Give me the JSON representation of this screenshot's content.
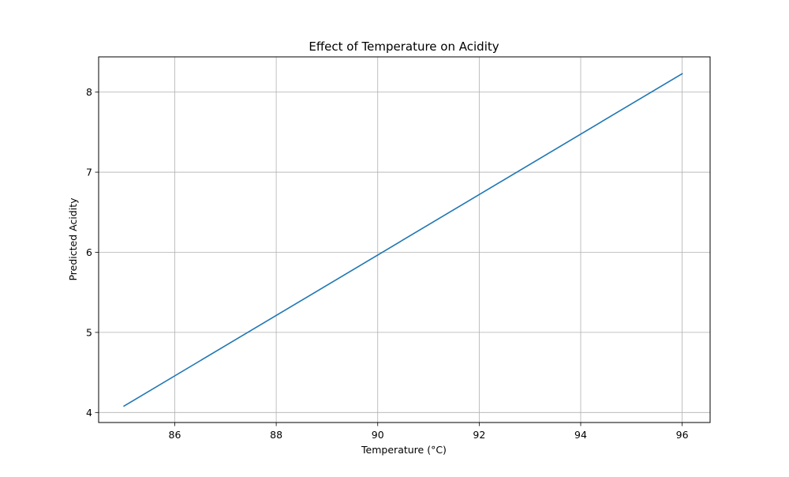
{
  "chart_data": {
    "type": "line",
    "title": "Effect of Temperature on Acidity",
    "xlabel": "Temperature (°C)",
    "ylabel": "Predicted Acidity",
    "xlim": [
      84.5,
      96.55
    ],
    "ylim": [
      3.875,
      8.44
    ],
    "x_ticks": [
      86,
      88,
      90,
      92,
      94,
      96
    ],
    "y_ticks": [
      4,
      5,
      6,
      7,
      8
    ],
    "grid": true,
    "legend": "none",
    "series": [
      {
        "color": "#1f77b4",
        "x": [
          85,
          96
        ],
        "y": [
          4.08,
          8.23
        ]
      }
    ]
  }
}
